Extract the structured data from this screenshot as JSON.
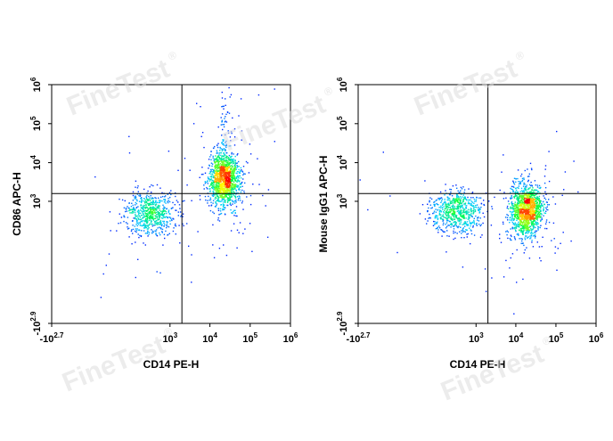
{
  "watermark": {
    "text": "FineTest",
    "mark": "®"
  },
  "chart_data": [
    {
      "type": "scatter",
      "title": "",
      "xlabel": "CD14 PE-H",
      "ylabel": "CD86 APC-H",
      "x_scale": "biexponential",
      "y_scale": "biexponential",
      "xlim": [
        -501,
        1000000
      ],
      "ylim": [
        -794,
        1000000
      ],
      "x_ticks": [
        {
          "base": "-10",
          "exp": "2.7"
        },
        {
          "base": "10",
          "exp": "3"
        },
        {
          "base": "10",
          "exp": "4"
        },
        {
          "base": "10",
          "exp": "5"
        },
        {
          "base": "10",
          "exp": "6"
        }
      ],
      "y_ticks": [
        {
          "base": "-10",
          "exp": "2.9"
        },
        {
          "base": "10",
          "exp": "3"
        },
        {
          "base": "10",
          "exp": "4"
        },
        {
          "base": "10",
          "exp": "5"
        },
        {
          "base": "10",
          "exp": "6"
        }
      ],
      "quadrant_gate": {
        "x": 2000,
        "y": 1600
      },
      "populations": [
        {
          "center_x": 300,
          "center_y": 500,
          "count": 650,
          "spread": "wide"
        },
        {
          "center_x": 22000,
          "center_y": 3800,
          "count": 1400,
          "spread": "tight",
          "tail": "upward"
        }
      ],
      "color_scale": [
        "#0000ff",
        "#00d0ff",
        "#00ff40",
        "#ffff00",
        "#ff0000"
      ]
    },
    {
      "type": "scatter",
      "title": "",
      "xlabel": "CD14 PE-H",
      "ylabel": "Mouse IgG1 APC-H",
      "x_scale": "biexponential",
      "y_scale": "biexponential",
      "xlim": [
        -501,
        1000000
      ],
      "ylim": [
        -794,
        1000000
      ],
      "x_ticks": [
        {
          "base": "-10",
          "exp": "2.7"
        },
        {
          "base": "10",
          "exp": "3"
        },
        {
          "base": "10",
          "exp": "4"
        },
        {
          "base": "10",
          "exp": "5"
        },
        {
          "base": "10",
          "exp": "6"
        }
      ],
      "y_ticks": [
        {
          "base": "-10",
          "exp": "2.9"
        },
        {
          "base": "10",
          "exp": "3"
        },
        {
          "base": "10",
          "exp": "4"
        },
        {
          "base": "10",
          "exp": "5"
        },
        {
          "base": "10",
          "exp": "6"
        }
      ],
      "quadrant_gate": {
        "x": 2000,
        "y": 1600
      },
      "populations": [
        {
          "center_x": 300,
          "center_y": 550,
          "count": 650,
          "spread": "wide"
        },
        {
          "center_x": 18000,
          "center_y": 600,
          "count": 1300,
          "spread": "tight",
          "tail": "none"
        }
      ],
      "color_scale": [
        "#0000ff",
        "#00d0ff",
        "#00ff40",
        "#ffff00",
        "#ff0000"
      ]
    }
  ]
}
